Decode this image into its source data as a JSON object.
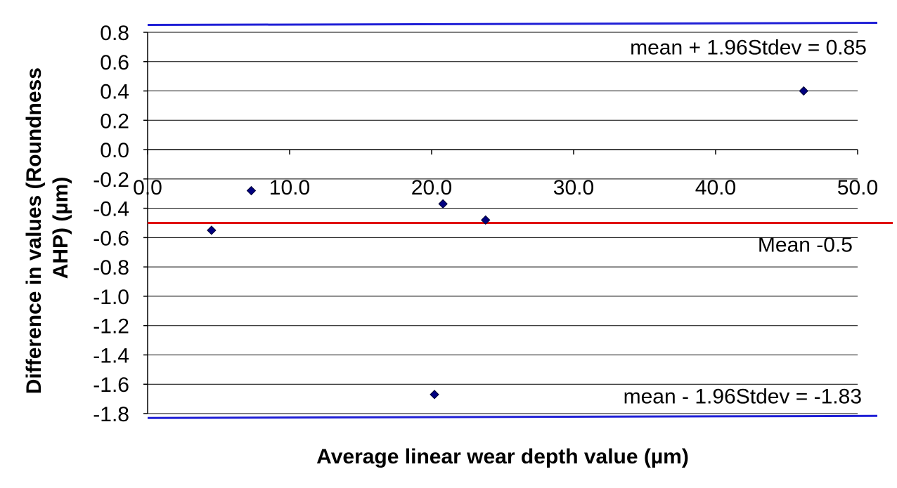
{
  "chart_data": {
    "type": "scatter",
    "title": "",
    "xlabel": "Average linear wear depth value (µm)",
    "ylabel_lines": [
      "Difference in values (Roundness",
      "AHP) (µm)"
    ],
    "xlim": [
      0,
      50
    ],
    "ylim": [
      -1.8,
      0.8
    ],
    "x_ticks": [
      0,
      10,
      20,
      30,
      40,
      50
    ],
    "x_tick_labels": [
      "0.0",
      "10.0",
      "20.0",
      "30.0",
      "40.0",
      "50.0"
    ],
    "y_ticks": [
      0.8,
      0.6,
      0.4,
      0.2,
      0.0,
      -0.2,
      -0.4,
      -0.6,
      -0.8,
      -1.0,
      -1.2,
      -1.4,
      -1.6,
      -1.8
    ],
    "y_tick_labels": [
      "0.8",
      "0.6",
      "0.4",
      "0.2",
      "0.0",
      "-0.2",
      "-0.4",
      "-0.6",
      "-0.8",
      "-1.0",
      "-1.2",
      "-1.4",
      "-1.6",
      "-1.8"
    ],
    "grid": true,
    "points": [
      {
        "x": 4.5,
        "y": -0.55
      },
      {
        "x": 7.3,
        "y": -0.28
      },
      {
        "x": 20.2,
        "y": -1.67
      },
      {
        "x": 20.8,
        "y": -0.37
      },
      {
        "x": 23.8,
        "y": -0.48
      },
      {
        "x": 46.2,
        "y": 0.4
      }
    ],
    "reference_lines": [
      {
        "label": "mean + 1.96Stdev = 0.85",
        "value": 0.85,
        "color": "#1f1fd6"
      },
      {
        "label": "Mean -0.5",
        "value": -0.5,
        "color": "#e01010"
      },
      {
        "label": "mean - 1.96Stdev = -1.83",
        "value": -1.83,
        "color": "#1f1fd6"
      }
    ],
    "marker_color": "#000080"
  }
}
